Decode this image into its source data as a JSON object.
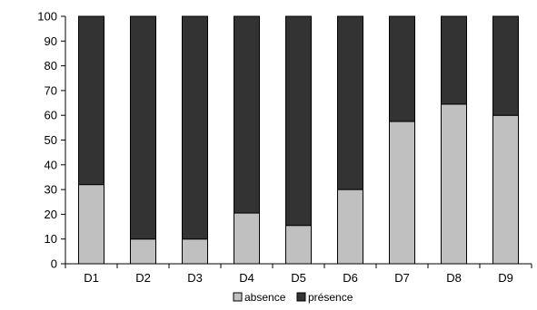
{
  "chart_data": {
    "type": "bar",
    "stacked": true,
    "title": "",
    "xlabel": "",
    "ylabel": "",
    "categories": [
      "D1",
      "D2",
      "D3",
      "D4",
      "D5",
      "D6",
      "D7",
      "D8",
      "D9"
    ],
    "series": [
      {
        "name": "absence",
        "color": "#c0c0c0",
        "values": [
          32,
          10,
          10,
          20.5,
          15.5,
          30,
          57.5,
          64.5,
          60
        ]
      },
      {
        "name": "présence",
        "color": "#333333",
        "values": [
          68,
          90,
          90,
          79.5,
          84.5,
          70,
          42.5,
          35.5,
          40
        ]
      }
    ],
    "ylim": [
      0,
      100
    ],
    "yticks": [
      "0",
      "10",
      "20",
      "30",
      "40",
      "50",
      "60",
      "70",
      "80",
      "90",
      "100"
    ],
    "grid": false,
    "legend_position": "bottom"
  }
}
